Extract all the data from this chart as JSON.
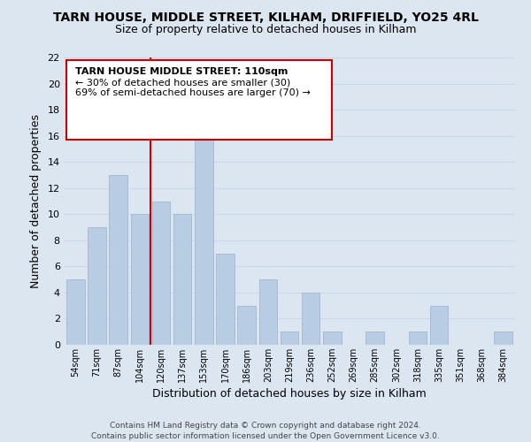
{
  "title": "TARN HOUSE, MIDDLE STREET, KILHAM, DRIFFIELD, YO25 4RL",
  "subtitle": "Size of property relative to detached houses in Kilham",
  "xlabel": "Distribution of detached houses by size in Kilham",
  "ylabel": "Number of detached properties",
  "bar_labels": [
    "54sqm",
    "71sqm",
    "87sqm",
    "104sqm",
    "120sqm",
    "137sqm",
    "153sqm",
    "170sqm",
    "186sqm",
    "203sqm",
    "219sqm",
    "236sqm",
    "252sqm",
    "269sqm",
    "285sqm",
    "302sqm",
    "318sqm",
    "335sqm",
    "351sqm",
    "368sqm",
    "384sqm"
  ],
  "bar_values": [
    5,
    9,
    13,
    10,
    11,
    10,
    18,
    7,
    3,
    5,
    1,
    4,
    1,
    0,
    1,
    0,
    1,
    3,
    0,
    0,
    1
  ],
  "bar_color": "#b8cce4",
  "bar_edge_color": "#aabbd4",
  "grid_color": "#c8d8e8",
  "background_color": "#dce6f1",
  "ylim": [
    0,
    22
  ],
  "yticks": [
    0,
    2,
    4,
    6,
    8,
    10,
    12,
    14,
    16,
    18,
    20,
    22
  ],
  "ref_line_x": 3.5,
  "ref_line_color": "#cc0000",
  "annotation_title": "TARN HOUSE MIDDLE STREET: 110sqm",
  "annotation_line1": "← 30% of detached houses are smaller (30)",
  "annotation_line2": "69% of semi-detached houses are larger (70) →",
  "footer1": "Contains HM Land Registry data © Crown copyright and database right 2024.",
  "footer2": "Contains public sector information licensed under the Open Government Licence v3.0."
}
